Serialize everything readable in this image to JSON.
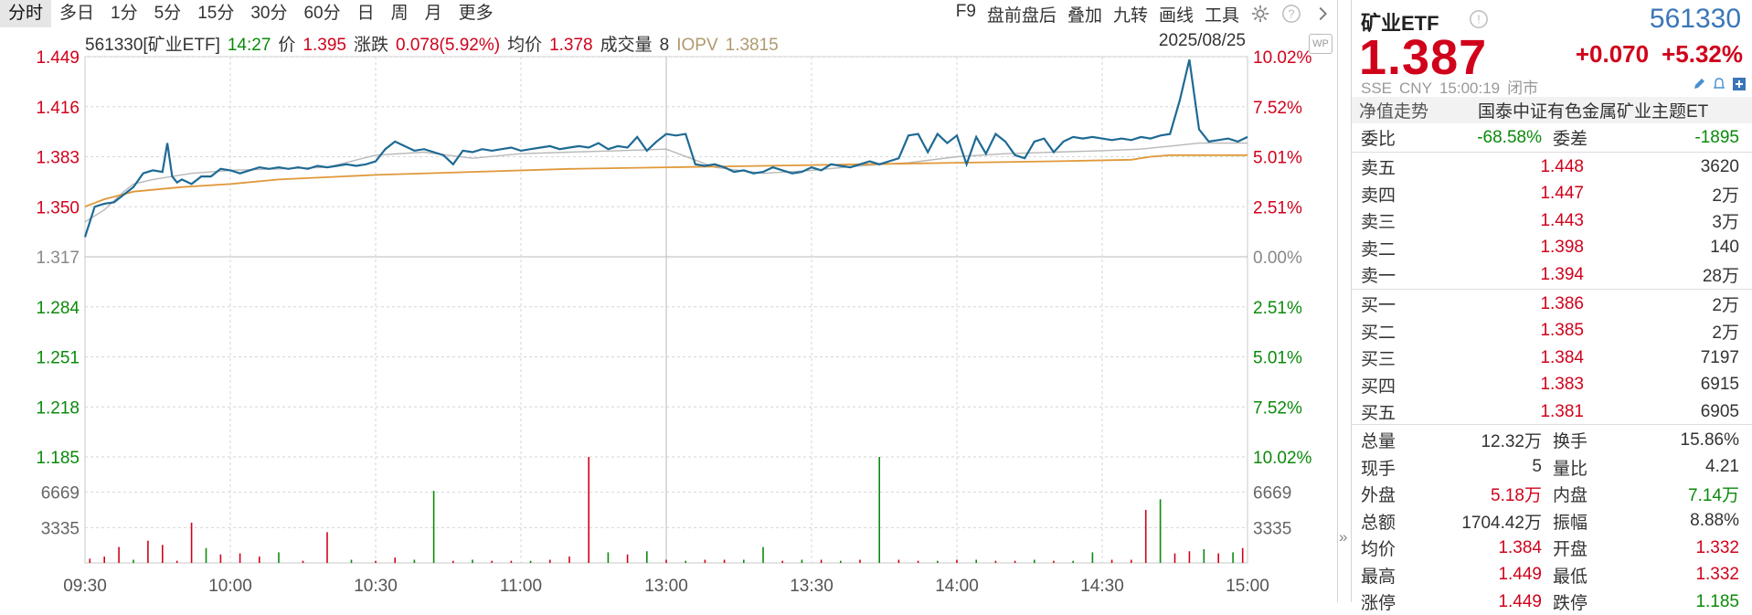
{
  "toolbar": {
    "periods": [
      "分时",
      "多日",
      "1分",
      "5分",
      "15分",
      "30分",
      "60分",
      "日",
      "周",
      "月",
      "更多"
    ],
    "tools": [
      "F9",
      "盘前盘后",
      "叠加",
      "九转",
      "画线",
      "工具"
    ],
    "icons": [
      "gear-icon",
      "help-icon",
      "chevron-right-icon"
    ]
  },
  "info": {
    "code_name": "561330[矿业ETF]",
    "time": "14:27",
    "price_label": "价",
    "price": "1.395",
    "change_label": "涨跌",
    "change": "0.078(5.92%)",
    "avg_label": "均价",
    "avg": "1.378",
    "vol_label": "成交量",
    "vol": "8",
    "iopv_label": "IOPV",
    "iopv": "1.3815",
    "date": "2025/08/25",
    "badge": "WP"
  },
  "colors": {
    "price_line": "#1e6a94",
    "avg_line": "#e0983a",
    "iopv_line": "#b8b8b8",
    "up": "#d0021b",
    "down": "#0a8a0a",
    "grid": "#d6d6d6"
  },
  "chart_data": {
    "type": "line",
    "x_ticks": [
      "09:30",
      "10:00",
      "10:30",
      "11:00",
      "13:00",
      "13:30",
      "14:00",
      "14:30",
      "15:00"
    ],
    "y_ticks": [
      "1.449",
      "1.416",
      "1.383",
      "1.350",
      "1.317",
      "1.284",
      "1.251",
      "1.218",
      "1.185"
    ],
    "y_right_ticks": [
      "10.02%",
      "7.52%",
      "5.01%",
      "2.51%",
      "0.00%",
      "2.51%",
      "5.01%",
      "7.52%",
      "10.02%"
    ],
    "ylim": [
      1.185,
      1.449
    ],
    "prev_close": 1.317,
    "volume_ticks": [
      "6669",
      "3335"
    ],
    "volume_max": 10004,
    "series": [
      {
        "role": "price",
        "x": [
          0,
          2,
          4,
          6,
          8,
          10,
          12,
          14,
          16,
          17,
          18,
          19,
          20,
          22,
          24,
          26,
          28,
          30,
          32,
          34,
          36,
          38,
          40,
          42,
          44,
          46,
          48,
          50,
          52,
          54,
          56,
          58,
          60,
          62,
          64,
          66,
          68,
          70,
          72,
          74,
          76,
          78,
          80,
          82,
          84,
          86,
          88,
          90,
          92,
          94,
          96,
          98,
          100,
          102,
          104,
          106,
          108,
          110,
          112,
          114,
          116,
          118,
          120,
          122,
          124,
          126,
          128,
          130,
          132,
          134,
          136,
          138,
          140,
          142,
          144,
          146,
          148,
          150,
          152,
          154,
          156,
          158,
          160,
          162,
          164,
          166,
          168,
          170,
          172,
          174,
          176,
          178,
          180,
          182,
          184,
          186,
          188,
          190,
          192,
          194,
          196,
          198,
          200,
          202,
          204,
          206,
          208,
          210,
          212,
          214,
          216,
          218,
          220,
          222,
          224,
          226,
          228,
          230,
          232,
          234,
          236,
          238,
          240
        ],
        "values": [
          1.33,
          1.35,
          1.352,
          1.353,
          1.358,
          1.363,
          1.372,
          1.374,
          1.373,
          1.392,
          1.37,
          1.366,
          1.368,
          1.365,
          1.37,
          1.37,
          1.375,
          1.374,
          1.372,
          1.374,
          1.376,
          1.375,
          1.376,
          1.375,
          1.376,
          1.375,
          1.377,
          1.376,
          1.377,
          1.378,
          1.377,
          1.378,
          1.38,
          1.388,
          1.393,
          1.39,
          1.387,
          1.388,
          1.386,
          1.384,
          1.378,
          1.387,
          1.386,
          1.388,
          1.387,
          1.388,
          1.389,
          1.387,
          1.388,
          1.389,
          1.39,
          1.388,
          1.389,
          1.39,
          1.389,
          1.392,
          1.388,
          1.39,
          1.389,
          1.396,
          1.387,
          1.393,
          1.398,
          1.397,
          1.398,
          1.378,
          1.377,
          1.378,
          1.376,
          1.373,
          1.374,
          1.372,
          1.373,
          1.376,
          1.374,
          1.372,
          1.373,
          1.376,
          1.374,
          1.378,
          1.377,
          1.376,
          1.378,
          1.38,
          1.378,
          1.38,
          1.382,
          1.397,
          1.398,
          1.386,
          1.398,
          1.392,
          1.397,
          1.378,
          1.396,
          1.385,
          1.398,
          1.393,
          1.384,
          1.382,
          1.393,
          1.395,
          1.386,
          1.393,
          1.396,
          1.395,
          1.396,
          1.395,
          1.394,
          1.395,
          1.394,
          1.396,
          1.395,
          1.397,
          1.398,
          1.42,
          1.447,
          1.401,
          1.393,
          1.394,
          1.395,
          1.393,
          1.396
        ]
      },
      {
        "role": "avg",
        "x": [
          0,
          4,
          10,
          20,
          30,
          40,
          60,
          80,
          100,
          120,
          140,
          160,
          180,
          200,
          216,
          220,
          224,
          230,
          240
        ],
        "values": [
          1.35,
          1.355,
          1.36,
          1.363,
          1.365,
          1.368,
          1.371,
          1.373,
          1.375,
          1.376,
          1.377,
          1.378,
          1.379,
          1.38,
          1.381,
          1.383,
          1.384,
          1.384,
          1.384
        ]
      },
      {
        "role": "iopv",
        "x": [
          0,
          4,
          8,
          10,
          14,
          18,
          22,
          30,
          40,
          50,
          60,
          70,
          80,
          90,
          100,
          110,
          120,
          130,
          140,
          150,
          160,
          170,
          180,
          190,
          200,
          210,
          218,
          224,
          230,
          240
        ],
        "values": [
          1.34,
          1.348,
          1.36,
          1.365,
          1.368,
          1.37,
          1.372,
          1.374,
          1.375,
          1.376,
          1.384,
          1.386,
          1.382,
          1.385,
          1.386,
          1.387,
          1.388,
          1.376,
          1.372,
          1.374,
          1.377,
          1.379,
          1.383,
          1.385,
          1.386,
          1.387,
          1.388,
          1.39,
          1.392,
          1.392
        ]
      }
    ],
    "volume": {
      "x": [
        1,
        4,
        7,
        10,
        13,
        16,
        19,
        22,
        25,
        28,
        32,
        36,
        40,
        45,
        50,
        55,
        60,
        64,
        68,
        72,
        76,
        80,
        84,
        88,
        92,
        96,
        100,
        104,
        108,
        112,
        116,
        120,
        124,
        128,
        132,
        136,
        140,
        144,
        148,
        152,
        156,
        160,
        164,
        168,
        172,
        176,
        180,
        184,
        188,
        192,
        196,
        200,
        204,
        208,
        212,
        216,
        219,
        222,
        225,
        228,
        231,
        234,
        237,
        239
      ],
      "values": [
        400,
        600,
        1500,
        300,
        2100,
        1700,
        200,
        3800,
        1400,
        800,
        900,
        600,
        1000,
        200,
        2900,
        300,
        200,
        500,
        300,
        6800,
        200,
        300,
        200,
        200,
        200,
        300,
        600,
        10000,
        1000,
        800,
        1100,
        300,
        200,
        300,
        300,
        300,
        1500,
        200,
        300,
        300,
        200,
        300,
        10000,
        300,
        200,
        200,
        300,
        300,
        200,
        200,
        300,
        200,
        200,
        1000,
        300,
        300,
        5000,
        6000,
        900,
        1100,
        1300,
        900,
        1000,
        1400
      ],
      "up": [
        true,
        true,
        true,
        false,
        true,
        true,
        true,
        true,
        false,
        true,
        true,
        true,
        false,
        true,
        true,
        false,
        true,
        true,
        false,
        false,
        true,
        false,
        true,
        true,
        false,
        true,
        true,
        true,
        false,
        true,
        false,
        true,
        false,
        true,
        true,
        false,
        false,
        true,
        false,
        true,
        false,
        true,
        false,
        true,
        true,
        false,
        true,
        false,
        true,
        true,
        false,
        true,
        false,
        false,
        true,
        true,
        true,
        false,
        true,
        true,
        false,
        true,
        false,
        true
      ]
    }
  },
  "panel": {
    "name": "矿业ETF",
    "code": "561330",
    "price": "1.387",
    "change": "+0.070",
    "change_pct": "+5.32%",
    "meta": [
      "SSE",
      "CNY",
      "15:00:19",
      "闭市"
    ],
    "nav_label": "净值走势",
    "nav_fund": "国泰中证有色金属矿业主题ET",
    "weibi_label": "委比",
    "weibi": "-68.58%",
    "weicha_label": "委差",
    "weicha": "-1895",
    "asks": [
      {
        "label": "卖五",
        "price": "1.448",
        "vol": "3620"
      },
      {
        "label": "卖四",
        "price": "1.447",
        "vol": "2万"
      },
      {
        "label": "卖三",
        "price": "1.443",
        "vol": "3万"
      },
      {
        "label": "卖二",
        "price": "1.398",
        "vol": "140"
      },
      {
        "label": "卖一",
        "price": "1.394",
        "vol": "28万"
      }
    ],
    "bids": [
      {
        "label": "买一",
        "price": "1.386",
        "vol": "2万"
      },
      {
        "label": "买二",
        "price": "1.385",
        "vol": "2万"
      },
      {
        "label": "买三",
        "price": "1.384",
        "vol": "7197"
      },
      {
        "label": "买四",
        "price": "1.383",
        "vol": "6915"
      },
      {
        "label": "买五",
        "price": "1.381",
        "vol": "6905"
      }
    ],
    "stats": [
      {
        "l1": "总量",
        "v1": "12.32万",
        "c1": "dark",
        "l2": "换手",
        "v2": "15.86%",
        "c2": "dark"
      },
      {
        "l1": "现手",
        "v1": "5",
        "c1": "dark",
        "l2": "量比",
        "v2": "4.21",
        "c2": "dark"
      },
      {
        "l1": "外盘",
        "v1": "5.18万",
        "c1": "red",
        "l2": "内盘",
        "v2": "7.14万",
        "c2": "green"
      },
      {
        "l1": "总额",
        "v1": "1704.42万",
        "c1": "dark",
        "l2": "振幅",
        "v2": "8.88%",
        "c2": "dark"
      },
      {
        "l1": "均价",
        "v1": "1.384",
        "c1": "red",
        "l2": "开盘",
        "v2": "1.332",
        "c2": "red"
      },
      {
        "l1": "最高",
        "v1": "1.449",
        "c1": "red",
        "l2": "最低",
        "v2": "1.332",
        "c2": "red"
      },
      {
        "l1": "涨停",
        "v1": "1.449",
        "c1": "red",
        "l2": "跌停",
        "v2": "1.185",
        "c2": "green"
      }
    ]
  }
}
